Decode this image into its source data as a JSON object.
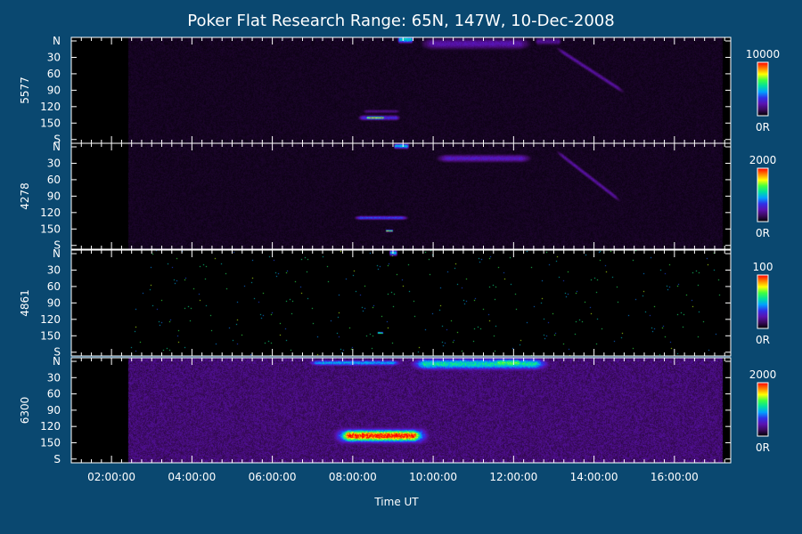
{
  "chart_data": {
    "type": "heatmap",
    "title": "Poker Flat Research Range: 65N, 147W, 10-Dec-2008",
    "xlabel": "Time UT",
    "x_ticks": [
      "02:00:00",
      "04:00:00",
      "06:00:00",
      "08:00:00",
      "10:00:00",
      "12:00:00",
      "14:00:00",
      "16:00:00"
    ],
    "x_range_hours": [
      1.0,
      17.4
    ],
    "data_coverage_hours": [
      2.4,
      17.2
    ],
    "y_ticks": [
      "N",
      "30",
      "60",
      "90",
      "120",
      "150",
      "S"
    ],
    "y_range_deg": [
      0,
      180
    ],
    "colorscale": [
      "#000000",
      "#3a0a5c",
      "#5a12b0",
      "#3030e8",
      "#00a0ff",
      "#00e0a0",
      "#40ff40",
      "#ffff00",
      "#ff8000",
      "#ff0000"
    ],
    "background_color": "#0a4870",
    "panels": [
      {
        "wavelength": "5577",
        "colorbar_max": "10000",
        "colorbar_min": "0R",
        "background_level": 0.04,
        "features": [
          {
            "kind": "arc",
            "t_start": 9.6,
            "t_end": 12.5,
            "y_center": 10,
            "y_halfwidth": 9,
            "intensity": 0.22
          },
          {
            "kind": "arc",
            "t_start": 12.5,
            "t_end": 13.2,
            "y_center": 6,
            "y_halfwidth": 6,
            "intensity": 0.18
          },
          {
            "kind": "curve",
            "t_start": 13.0,
            "t_end": 14.8,
            "y_start": 15,
            "y_end": 95,
            "intensity": 0.2
          },
          {
            "kind": "spot",
            "t_start": 9.1,
            "t_end": 9.5,
            "y_center": 3,
            "y_halfwidth": 5,
            "intensity": 0.55
          },
          {
            "kind": "blob",
            "t_start": 8.1,
            "t_end": 9.2,
            "y_center": 136,
            "y_halfwidth": 4,
            "intensity": 0.3
          },
          {
            "kind": "blob",
            "t_start": 8.2,
            "t_end": 9.2,
            "y_center": 125,
            "y_halfwidth": 3,
            "intensity": 0.15
          },
          {
            "kind": "core",
            "t_start": 8.3,
            "t_end": 8.8,
            "y_center": 136,
            "y_halfwidth": 2,
            "intensity": 0.85
          }
        ]
      },
      {
        "wavelength": "4278",
        "colorbar_max": "2000",
        "colorbar_min": "0R",
        "background_level": 0.04,
        "features": [
          {
            "kind": "arc",
            "t_start": 10.0,
            "t_end": 12.5,
            "y_center": 25,
            "y_halfwidth": 6,
            "intensity": 0.25
          },
          {
            "kind": "curve",
            "t_start": 13.0,
            "t_end": 14.7,
            "y_start": 10,
            "y_end": 100,
            "intensity": 0.2
          },
          {
            "kind": "spot",
            "t_start": 9.0,
            "t_end": 9.4,
            "y_center": 4,
            "y_halfwidth": 4,
            "intensity": 0.5
          },
          {
            "kind": "blob",
            "t_start": 8.0,
            "t_end": 9.4,
            "y_center": 126,
            "y_halfwidth": 3,
            "intensity": 0.35
          },
          {
            "kind": "core",
            "t_start": 8.8,
            "t_end": 9.0,
            "y_center": 148,
            "y_halfwidth": 1.5,
            "intensity": 0.7
          }
        ]
      },
      {
        "wavelength": "4861",
        "colorbar_max": "100",
        "colorbar_min": "0R",
        "background_level": 0.0,
        "features": [
          {
            "kind": "spot",
            "t_start": 8.9,
            "t_end": 9.1,
            "y_center": 4,
            "y_halfwidth": 4,
            "intensity": 0.5
          },
          {
            "kind": "core",
            "t_start": 8.6,
            "t_end": 8.75,
            "y_center": 140,
            "y_halfwidth": 1,
            "intensity": 0.9
          }
        ]
      },
      {
        "wavelength": "6300",
        "colorbar_max": "2000",
        "colorbar_min": "0R",
        "background_level": 0.14,
        "features": [
          {
            "kind": "arc",
            "t_start": 6.8,
            "t_end": 9.3,
            "y_center": 8,
            "y_halfwidth": 5,
            "intensity": 0.45
          },
          {
            "kind": "arc",
            "t_start": 9.3,
            "t_end": 13.0,
            "y_center": 10,
            "y_halfwidth": 10,
            "intensity": 0.55
          },
          {
            "kind": "spot",
            "t_start": 11.5,
            "t_end": 12.2,
            "y_center": 8,
            "y_halfwidth": 7,
            "intensity": 0.65
          },
          {
            "kind": "blob",
            "t_start": 7.4,
            "t_end": 10.0,
            "y_center": 133,
            "y_halfwidth": 14,
            "intensity": 0.45
          },
          {
            "kind": "core",
            "t_start": 7.6,
            "t_end": 9.8,
            "y_center": 133,
            "y_halfwidth": 10,
            "intensity": 1.0
          }
        ]
      }
    ]
  }
}
